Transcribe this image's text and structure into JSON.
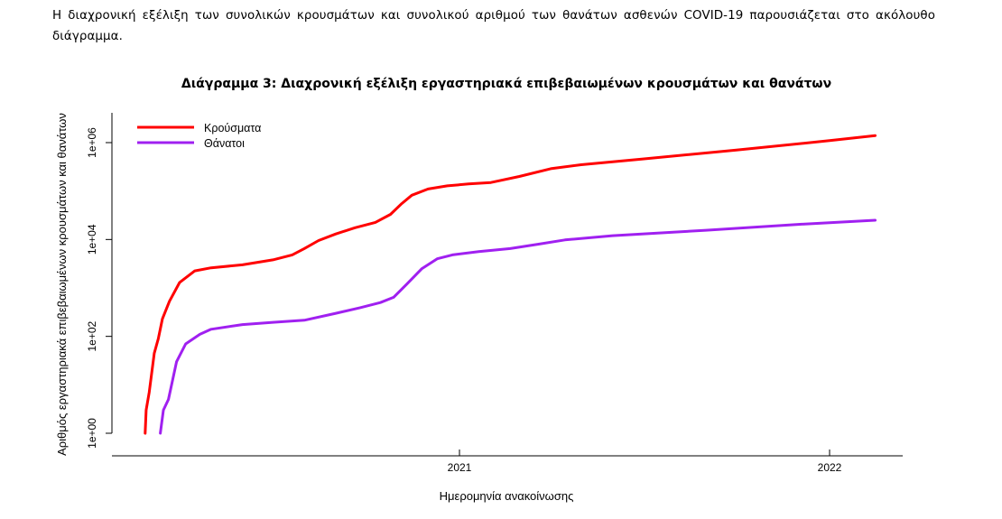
{
  "document": {
    "intro_text": "Η διαχρονική εξέλιξη των συνολικών κρουσμάτων και συνολικού αριθμού των θανάτων ασθενών COVID-19 παρουσιάζεται στο ακόλουθο διάγραμμα."
  },
  "chart_data": {
    "type": "line",
    "title": "Διάγραμμα 3: Διαχρονική εξέλιξη εργαστηριακά επιβεβαιωμένων κρουσμάτων και θανάτων",
    "xlabel": "Ημερομηνία ανακοίνωσης",
    "ylabel": "Αριθμός εργαστηριακά επιβεβαιωμένων κρουσμάτων και θανάτων",
    "y_scale": "log10",
    "y_ticks": [
      "1e+00",
      "1e+02",
      "1e+04",
      "1e+06"
    ],
    "x_ticks": [
      "2021",
      "2022"
    ],
    "legend_position": "top-left",
    "grid": false,
    "series": [
      {
        "name": "Κρούσματα",
        "color": "#ff0000",
        "points": [
          [
            "2020-02-26",
            1
          ],
          [
            "2020-02-27",
            3
          ],
          [
            "2020-03-01",
            7
          ],
          [
            "2020-03-06",
            45
          ],
          [
            "2020-03-10",
            90
          ],
          [
            "2020-03-14",
            230
          ],
          [
            "2020-03-21",
            530
          ],
          [
            "2020-03-31",
            1300
          ],
          [
            "2020-04-15",
            2250
          ],
          [
            "2020-05-01",
            2600
          ],
          [
            "2020-06-01",
            3000
          ],
          [
            "2020-07-01",
            3800
          ],
          [
            "2020-07-20",
            4800
          ],
          [
            "2020-08-01",
            6500
          ],
          [
            "2020-08-15",
            9500
          ],
          [
            "2020-09-01",
            13000
          ],
          [
            "2020-09-20",
            17500
          ],
          [
            "2020-10-10",
            22500
          ],
          [
            "2020-10-25",
            33000
          ],
          [
            "2020-11-05",
            55000
          ],
          [
            "2020-11-15",
            82000
          ],
          [
            "2020-12-01",
            110000
          ],
          [
            "2020-12-20",
            128000
          ],
          [
            "2021-01-10",
            140000
          ],
          [
            "2021-02-01",
            150000
          ],
          [
            "2021-03-01",
            200000
          ],
          [
            "2021-04-01",
            290000
          ],
          [
            "2021-05-01",
            350000
          ],
          [
            "2021-07-01",
            460000
          ],
          [
            "2021-10-01",
            700000
          ],
          [
            "2022-01-01",
            1100000
          ],
          [
            "2022-02-15",
            1400000
          ]
        ]
      },
      {
        "name": "Θάνατοι",
        "color": "#a020f0",
        "points": [
          [
            "2020-03-12",
            1
          ],
          [
            "2020-03-15",
            3
          ],
          [
            "2020-03-20",
            5
          ],
          [
            "2020-03-28",
            30
          ],
          [
            "2020-04-06",
            70
          ],
          [
            "2020-04-20",
            110
          ],
          [
            "2020-05-01",
            140
          ],
          [
            "2020-06-01",
            175
          ],
          [
            "2020-07-01",
            195
          ],
          [
            "2020-08-01",
            215
          ],
          [
            "2020-09-01",
            300
          ],
          [
            "2020-09-25",
            390
          ],
          [
            "2020-10-15",
            500
          ],
          [
            "2020-10-28",
            640
          ],
          [
            "2020-11-10",
            1200
          ],
          [
            "2020-11-25",
            2500
          ],
          [
            "2020-12-10",
            4000
          ],
          [
            "2020-12-25",
            4800
          ],
          [
            "2021-01-20",
            5600
          ],
          [
            "2021-02-20",
            6500
          ],
          [
            "2021-03-20",
            8000
          ],
          [
            "2021-04-15",
            9800
          ],
          [
            "2021-06-01",
            12000
          ],
          [
            "2021-09-01",
            15500
          ],
          [
            "2021-12-01",
            20500
          ],
          [
            "2022-02-15",
            25000
          ]
        ]
      }
    ]
  }
}
